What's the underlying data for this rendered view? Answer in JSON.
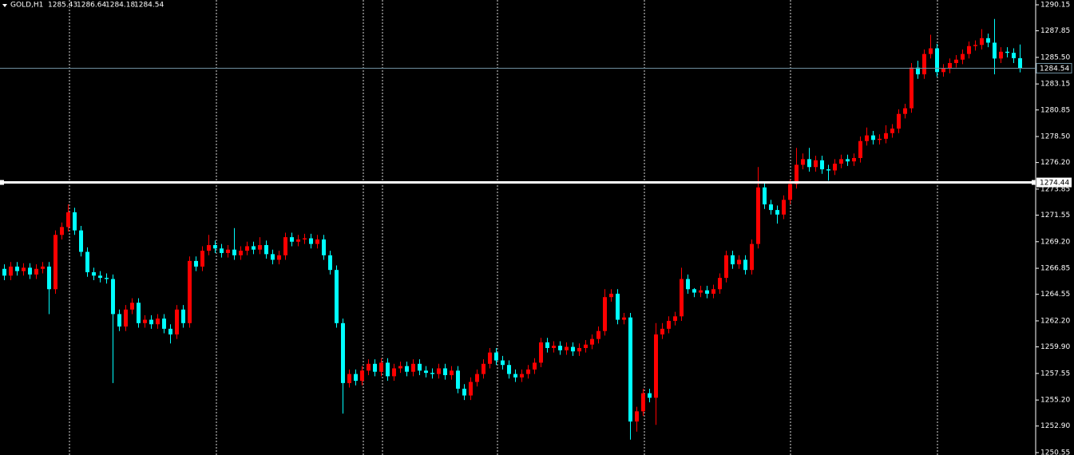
{
  "chart_data": {
    "type": "candlestick",
    "symbol": "GOLD,H1",
    "up_color": "#ff0000",
    "down_color": "#00ffff",
    "background": "#000000",
    "horizontal_line": 1274.44,
    "horizontal_line_color": "#ffffff",
    "bid_line_color": "#6f8fa0",
    "ylim": [
      1250.55,
      1290.15
    ],
    "yticks": [
      1290.15,
      1287.85,
      {
        "value": 1285.5,
        "label": "1285.50"
      },
      1283.15,
      1280.85,
      {
        "value": 1278.5,
        "label": "1278.50"
      },
      {
        "value": 1276.2,
        "label": "1276.20"
      },
      1273.85,
      1271.55,
      {
        "value": 1269.2,
        "label": "1269.20"
      },
      1266.85,
      1264.55,
      {
        "value": 1262.2,
        "label": "1262.20"
      },
      {
        "value": 1259.9,
        "label": "1259.90"
      },
      1257.55,
      {
        "value": 1255.2,
        "label": "1255.20"
      },
      {
        "value": 1252.9,
        "label": "1252.90"
      },
      1250.55
    ],
    "open": [
      1266.8,
      1266.2,
      1267.0,
      1266.6,
      1266.9,
      1266.3,
      1266.8,
      1267.0,
      1265.0,
      1269.8,
      1270.5,
      1271.8,
      1270.2,
      1268.3,
      1266.5,
      1266.2,
      1266.0,
      1265.9,
      1262.8,
      1261.7,
      1263.2,
      1263.8,
      1262.0,
      1262.3,
      1261.9,
      1262.4,
      1261.5,
      1261.0,
      1263.2,
      1262.0,
      1267.5,
      1267.0,
      1268.4,
      1268.9,
      1268.6,
      1268.2,
      1268.5,
      1268.0,
      1268.4,
      1268.8,
      1268.5,
      1268.9,
      1268.1,
      1267.6,
      1268.0,
      1269.6,
      1269.2,
      1269.4,
      1269.5,
      1269.0,
      1269.4,
      1268.0,
      1266.7,
      1262.0,
      1256.7,
      1257.5,
      1256.9,
      1257.8,
      1258.4,
      1257.7,
      1258.5,
      1257.3,
      1258.0,
      1258.2,
      1257.7,
      1258.4,
      1257.8,
      1257.6,
      1257.5,
      1258.0,
      1257.4,
      1257.8,
      1256.2,
      1255.6,
      1256.8,
      1257.5,
      1258.4,
      1259.4,
      1258.7,
      1258.3,
      1257.5,
      1257.2,
      1257.5,
      1257.9,
      1258.5,
      1260.3,
      1259.8,
      1260.0,
      1259.6,
      1259.9,
      1259.5,
      1259.8,
      1260.1,
      1260.6,
      1261.3,
      1264.3,
      1264.6,
      1262.3,
      1262.5,
      1253.3,
      1254.2,
      1255.8,
      1255.4,
      1261.0,
      1261.5,
      1262.2,
      1262.6,
      1265.9,
      1265.0,
      1264.7,
      1264.9,
      1264.6,
      1265.0,
      1266.0,
      1268.0,
      1267.2,
      1267.6,
      1266.7,
      1269.0,
      1274.0,
      1272.5,
      1272.0,
      1271.6,
      1272.9,
      1274.3,
      1276.0,
      1276.5,
      1275.8,
      1276.4,
      1275.6,
      1275.5,
      1276.1,
      1276.5,
      1276.3,
      1276.6,
      1278.1,
      1278.6,
      1278.2,
      1278.3,
      1278.8,
      1279.2,
      1280.5,
      1281.0,
      1284.6,
      1284.0,
      1285.8,
      1286.3,
      1284.2,
      1284.5,
      1285.0,
      1285.3,
      1285.8,
      1286.5,
      1286.6,
      1287.2,
      1286.8,
      1285.4,
      1286.0,
      1285.9,
      1285.43
    ],
    "high": [
      1267.2,
      1267.4,
      1267.4,
      1267.3,
      1267.3,
      1267.2,
      1267.4,
      1267.4,
      1270.2,
      1270.9,
      1272.5,
      1272.2,
      1270.6,
      1268.7,
      1266.9,
      1266.6,
      1266.4,
      1266.3,
      1263.2,
      1263.6,
      1264.2,
      1264.2,
      1262.7,
      1262.7,
      1262.8,
      1262.8,
      1261.9,
      1263.6,
      1263.6,
      1267.9,
      1267.9,
      1268.8,
      1269.8,
      1269.3,
      1269.0,
      1268.9,
      1270.4,
      1268.8,
      1269.2,
      1269.2,
      1269.6,
      1269.3,
      1268.5,
      1268.4,
      1270.0,
      1270.0,
      1269.8,
      1269.9,
      1269.9,
      1269.8,
      1269.8,
      1268.4,
      1267.1,
      1262.4,
      1257.9,
      1257.9,
      1258.2,
      1258.8,
      1258.8,
      1258.9,
      1258.9,
      1258.4,
      1258.6,
      1258.6,
      1258.8,
      1258.8,
      1258.2,
      1258.0,
      1258.4,
      1258.4,
      1258.2,
      1258.2,
      1256.6,
      1257.2,
      1257.9,
      1258.8,
      1259.8,
      1259.8,
      1259.1,
      1258.7,
      1257.9,
      1257.9,
      1258.3,
      1258.9,
      1260.7,
      1260.7,
      1260.4,
      1260.4,
      1260.3,
      1260.3,
      1260.2,
      1260.5,
      1261.0,
      1261.7,
      1265.0,
      1265.0,
      1265.0,
      1262.9,
      1262.9,
      1254.6,
      1256.2,
      1256.2,
      1262.0,
      1262.0,
      1262.6,
      1263.0,
      1266.9,
      1266.3,
      1265.1,
      1265.3,
      1265.3,
      1265.4,
      1266.4,
      1268.4,
      1268.4,
      1268.0,
      1268.0,
      1269.4,
      1275.8,
      1274.4,
      1272.9,
      1272.4,
      1273.3,
      1274.7,
      1277.5,
      1277.0,
      1277.5,
      1276.8,
      1276.8,
      1276.0,
      1276.5,
      1276.9,
      1276.9,
      1277.0,
      1278.5,
      1279.3,
      1279.0,
      1278.7,
      1279.5,
      1279.6,
      1280.9,
      1281.4,
      1285.0,
      1285.2,
      1286.2,
      1287.5,
      1286.7,
      1284.9,
      1285.4,
      1285.7,
      1286.2,
      1286.9,
      1287.0,
      1288.0,
      1287.6,
      1288.9,
      1286.4,
      1286.4,
      1286.3,
      1286.64
    ],
    "low": [
      1265.8,
      1265.8,
      1266.2,
      1266.2,
      1265.9,
      1265.9,
      1266.4,
      1262.8,
      1264.6,
      1269.4,
      1270.1,
      1269.8,
      1267.9,
      1266.1,
      1265.8,
      1265.6,
      1265.5,
      1256.7,
      1261.3,
      1261.3,
      1262.8,
      1261.6,
      1261.6,
      1261.5,
      1261.5,
      1261.1,
      1260.2,
      1260.6,
      1261.6,
      1261.6,
      1266.6,
      1266.6,
      1268.0,
      1268.2,
      1267.8,
      1267.8,
      1267.6,
      1267.6,
      1268.0,
      1268.1,
      1268.1,
      1267.7,
      1267.2,
      1267.2,
      1267.6,
      1268.8,
      1268.8,
      1269.0,
      1268.6,
      1268.6,
      1267.6,
      1266.3,
      1261.6,
      1254.0,
      1256.3,
      1256.5,
      1256.5,
      1257.4,
      1257.3,
      1257.3,
      1256.9,
      1256.9,
      1257.6,
      1257.3,
      1257.3,
      1257.4,
      1257.2,
      1257.1,
      1257.1,
      1257.0,
      1257.0,
      1255.8,
      1255.2,
      1255.2,
      1256.4,
      1257.1,
      1258.0,
      1258.3,
      1257.9,
      1257.1,
      1256.8,
      1256.8,
      1257.1,
      1257.5,
      1258.1,
      1259.4,
      1259.4,
      1259.2,
      1259.2,
      1259.1,
      1259.1,
      1259.4,
      1259.7,
      1260.2,
      1260.9,
      1263.9,
      1261.9,
      1261.9,
      1251.7,
      1252.4,
      1253.8,
      1255.0,
      1253.0,
      1260.6,
      1261.1,
      1261.8,
      1262.2,
      1264.6,
      1264.3,
      1264.3,
      1264.2,
      1264.2,
      1264.6,
      1265.6,
      1266.8,
      1266.8,
      1266.3,
      1266.3,
      1268.6,
      1272.1,
      1271.6,
      1270.8,
      1271.2,
      1272.5,
      1273.9,
      1275.6,
      1275.4,
      1275.4,
      1275.2,
      1274.6,
      1275.1,
      1275.7,
      1275.9,
      1275.9,
      1276.2,
      1277.7,
      1277.8,
      1277.8,
      1277.9,
      1278.4,
      1278.8,
      1280.1,
      1280.6,
      1283.6,
      1283.6,
      1285.4,
      1283.8,
      1283.8,
      1284.1,
      1284.6,
      1284.9,
      1285.4,
      1286.1,
      1286.2,
      1286.4,
      1284.0,
      1285.0,
      1285.5,
      1285.0,
      1284.18
    ],
    "close": [
      1266.2,
      1267.0,
      1266.6,
      1266.9,
      1266.3,
      1266.8,
      1267.0,
      1265.0,
      1269.8,
      1270.5,
      1271.8,
      1270.2,
      1268.3,
      1266.5,
      1266.2,
      1266.0,
      1265.9,
      1262.8,
      1261.7,
      1263.2,
      1263.8,
      1262.0,
      1262.3,
      1261.9,
      1262.4,
      1261.5,
      1261.0,
      1263.2,
      1262.0,
      1267.5,
      1267.0,
      1268.4,
      1268.9,
      1268.6,
      1268.2,
      1268.5,
      1268.0,
      1268.4,
      1268.8,
      1268.5,
      1268.9,
      1268.1,
      1267.6,
      1268.0,
      1269.6,
      1269.2,
      1269.4,
      1269.5,
      1269.0,
      1269.4,
      1268.0,
      1266.7,
      1262.0,
      1256.7,
      1257.5,
      1256.9,
      1257.8,
      1258.4,
      1257.7,
      1258.5,
      1257.3,
      1258.0,
      1258.2,
      1257.7,
      1258.4,
      1257.8,
      1257.6,
      1257.5,
      1258.0,
      1257.4,
      1257.8,
      1256.2,
      1255.6,
      1256.8,
      1257.5,
      1258.4,
      1259.4,
      1258.7,
      1258.3,
      1257.5,
      1257.2,
      1257.5,
      1257.9,
      1258.5,
      1260.3,
      1259.8,
      1260.0,
      1259.6,
      1259.9,
      1259.5,
      1259.8,
      1260.1,
      1260.6,
      1261.3,
      1264.3,
      1264.6,
      1262.3,
      1262.5,
      1253.3,
      1254.2,
      1255.8,
      1255.4,
      1261.0,
      1261.5,
      1262.2,
      1262.6,
      1265.9,
      1265.0,
      1264.7,
      1264.9,
      1264.6,
      1265.0,
      1266.0,
      1268.0,
      1267.2,
      1267.6,
      1266.7,
      1269.0,
      1274.0,
      1272.5,
      1272.0,
      1271.6,
      1272.9,
      1274.3,
      1276.0,
      1276.5,
      1275.8,
      1276.4,
      1275.6,
      1275.5,
      1276.1,
      1276.5,
      1276.3,
      1276.6,
      1278.1,
      1278.6,
      1278.2,
      1278.3,
      1278.8,
      1279.2,
      1280.5,
      1281.0,
      1284.6,
      1284.0,
      1285.8,
      1286.3,
      1284.2,
      1284.5,
      1285.0,
      1285.3,
      1285.8,
      1286.5,
      1286.6,
      1287.2,
      1286.8,
      1285.4,
      1286.0,
      1285.9,
      1285.43,
      1284.54
    ]
  }
}
